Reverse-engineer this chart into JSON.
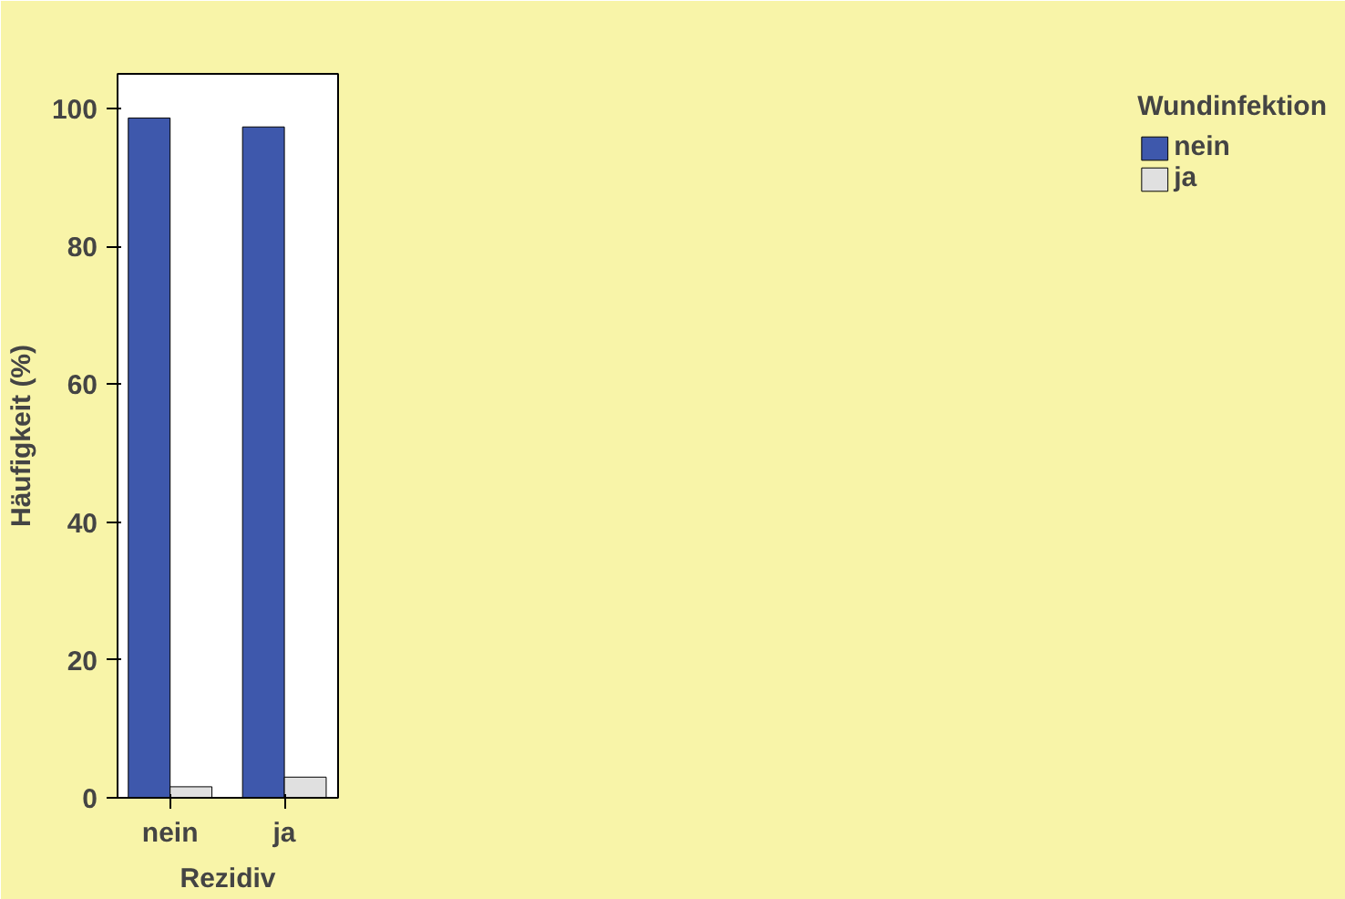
{
  "chart_data": {
    "type": "bar",
    "xlabel": "Rezidiv",
    "ylabel": "Häufigkeit (%)",
    "legend_title": "Wundinfektion",
    "categories": [
      "nein",
      "ja"
    ],
    "series": [
      {
        "name": "nein",
        "color": "#3e58ac",
        "values": [
          98.6,
          97.3
        ]
      },
      {
        "name": "ja",
        "color": "#e0e0e0",
        "values": [
          1.6,
          3.0
        ]
      }
    ],
    "ylim": [
      0,
      105
    ],
    "yticks": [
      0,
      20,
      40,
      60,
      80,
      100
    ],
    "grid": false,
    "legend": "right"
  }
}
